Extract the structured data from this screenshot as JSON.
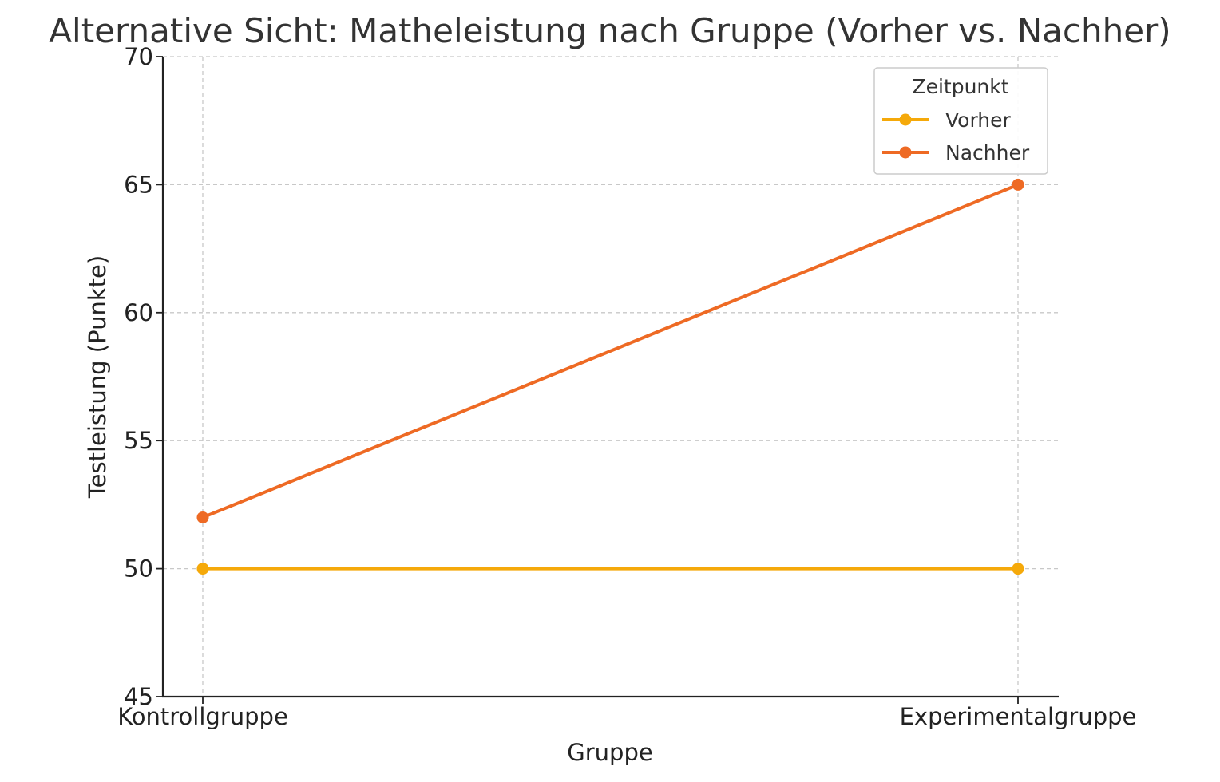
{
  "chart_data": {
    "type": "line",
    "title": "Alternative Sicht: Matheleistung nach Gruppe (Vorher vs. Nachher)",
    "xlabel": "Gruppe",
    "ylabel": "Testleistung (Punkte)",
    "categories": [
      "Kontrollgruppe",
      "Experimentalgruppe"
    ],
    "ylim": [
      45,
      70
    ],
    "yticks": [
      45,
      50,
      55,
      60,
      65,
      70
    ],
    "grid": true,
    "legend": {
      "title": "Zeitpunkt",
      "placement": "top-right"
    },
    "series": [
      {
        "name": "Vorher",
        "values": [
          50,
          50
        ],
        "color": "#F5A90A"
      },
      {
        "name": "Nachher",
        "values": [
          52,
          65
        ],
        "color": "#EE6A24"
      }
    ]
  }
}
